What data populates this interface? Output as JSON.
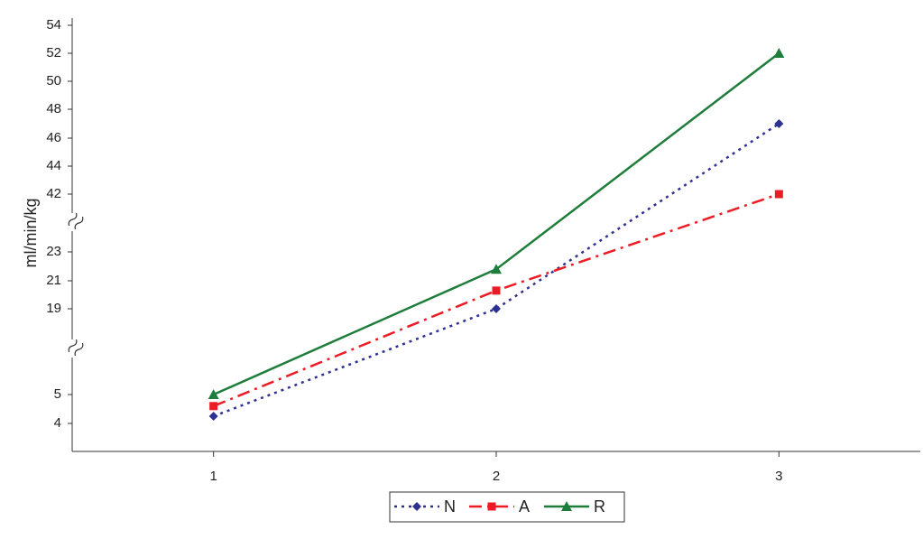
{
  "chart_data": {
    "type": "line",
    "y_label": "ml/min/kg",
    "categories": [
      "1",
      "2",
      "3"
    ],
    "series": [
      {
        "name": "N",
        "color": "#2e3192",
        "linestyle": "dotted",
        "marker": "diamond",
        "values": [
          4.25,
          19,
          47
        ]
      },
      {
        "name": "A",
        "color": "#ed1c24",
        "linestyle": "dashdot",
        "marker": "square",
        "values": [
          4.6,
          20.3,
          42
        ]
      },
      {
        "name": "R",
        "color": "#1e7d3a",
        "linestyle": "solid",
        "marker": "triangle",
        "values": [
          5,
          21.8,
          52
        ]
      }
    ],
    "ylim": [
      3,
      54
    ],
    "yticks": [
      4,
      5,
      19,
      21,
      23,
      42,
      44,
      46,
      48,
      50,
      52,
      54
    ],
    "legend": "bottom"
  }
}
